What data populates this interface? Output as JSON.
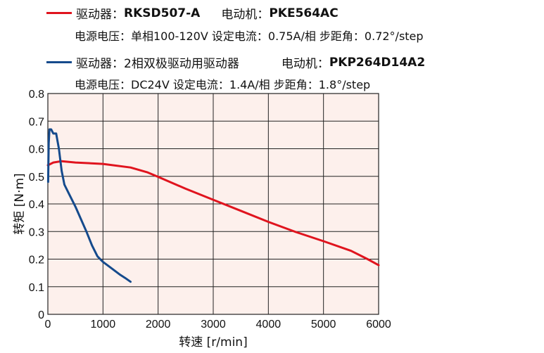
{
  "legend": [
    {
      "color": "#e0141e",
      "driver_label": "驱动器：",
      "driver": "RKSD507-A",
      "motor_label": "电动机：",
      "motor": "PKE564AC",
      "specs": "电源电压：单相100-120V  设定电流：0.75A/相  步距角：0.72°/step"
    },
    {
      "color": "#154a8c",
      "driver_label": "驱动器：",
      "driver": "2相双极驱动用驱动器",
      "motor_label": "电动机：",
      "motor": "PKP264D14A2",
      "specs": "电源电压：DC24V  设定电流：1.4A/相  步距角：1.8°/step"
    }
  ],
  "chart_data": {
    "type": "line",
    "xlabel": "转速 [r/min]",
    "ylabel": "转矩 [N·m]",
    "xlim": [
      0,
      6000
    ],
    "ylim": [
      0,
      0.8
    ],
    "xticks": [
      0,
      1000,
      2000,
      3000,
      4000,
      5000,
      6000
    ],
    "yticks": [
      0,
      0.1,
      0.2,
      0.3,
      0.4,
      0.5,
      0.6,
      0.7,
      0.8
    ],
    "grid": true,
    "background": "#fdf0ec",
    "series": [
      {
        "name": "RKSD507-A / PKE564AC",
        "color": "#e0141e",
        "x": [
          0,
          100,
          250,
          500,
          1000,
          1500,
          1800,
          2000,
          2500,
          3000,
          3500,
          4000,
          4500,
          5000,
          5500,
          5800,
          6000
        ],
        "y": [
          0.54,
          0.55,
          0.555,
          0.55,
          0.545,
          0.532,
          0.515,
          0.498,
          0.455,
          0.415,
          0.375,
          0.335,
          0.298,
          0.265,
          0.23,
          0.2,
          0.178
        ]
      },
      {
        "name": "2相双极驱动用驱动器 / PKP264D14A2",
        "color": "#154a8c",
        "x": [
          5,
          15,
          30,
          60,
          100,
          150,
          200,
          250,
          300,
          400,
          500,
          600,
          700,
          800,
          900,
          1000,
          1100,
          1200,
          1300,
          1400,
          1500
        ],
        "y": [
          0.48,
          0.62,
          0.67,
          0.67,
          0.655,
          0.655,
          0.6,
          0.52,
          0.47,
          0.43,
          0.39,
          0.345,
          0.3,
          0.25,
          0.21,
          0.19,
          0.175,
          0.16,
          0.145,
          0.132,
          0.118
        ]
      }
    ]
  }
}
